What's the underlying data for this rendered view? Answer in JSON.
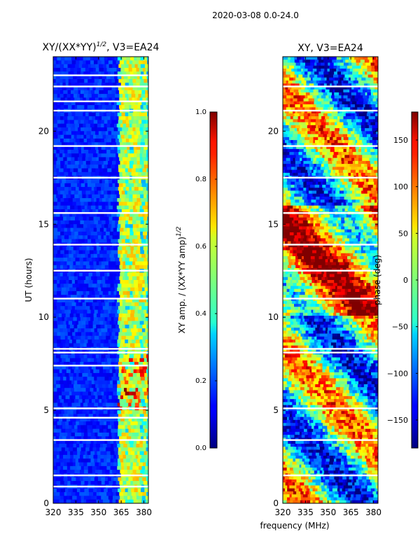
{
  "suptitle": "2020-03-08 0.0-24.0",
  "xlabel_shared": "frequency (MHz)",
  "chart_data": [
    {
      "type": "heatmap",
      "title_main": "XY/(XX*YY)",
      "title_exp": "1/2",
      "title_suffix": ", V3=EA24",
      "ylabel": "UT (hours)",
      "x_ticks": [
        320,
        335,
        350,
        365,
        380
      ],
      "xlim": [
        320,
        383
      ],
      "y_ticks": [
        0,
        5,
        10,
        15,
        20
      ],
      "ylim": [
        0,
        24
      ],
      "colorbar": {
        "label_main": "XY amp. / (XX*YY amp)",
        "label_exp": "1/2",
        "ticks": [
          "0.0",
          "0.2",
          "0.4",
          "0.6",
          "0.8",
          "1.0"
        ],
        "range": [
          0,
          1
        ],
        "colormap": "jet"
      },
      "bright_channels_mhz": [
        364,
        366,
        369,
        372,
        374,
        376,
        380
      ],
      "flagged_hours": [
        0.9,
        1.5,
        3.4,
        4.6,
        5.1,
        7.4,
        8.1,
        8.3,
        11.0,
        12.5,
        13.9,
        15.6,
        17.5,
        19.2,
        21.1,
        21.6,
        22.4,
        23.0
      ]
    },
    {
      "type": "heatmap",
      "title": "XY, V3=EA24",
      "x_ticks": [
        320,
        335,
        350,
        365,
        380
      ],
      "xlim": [
        320,
        383
      ],
      "y_ticks": [
        0,
        5,
        10,
        15,
        20
      ],
      "ylim": [
        0,
        24
      ],
      "colorbar": {
        "label": "phase (deg)",
        "ticks": [
          "−150",
          "−100",
          "−50",
          "0",
          "50",
          "100",
          "150"
        ],
        "tick_values": [
          -150,
          -100,
          -50,
          0,
          50,
          100,
          150
        ],
        "range": [
          -180,
          180
        ],
        "colormap": "jet"
      },
      "flagged_hours": [
        1.5,
        3.4,
        5.1,
        8.1,
        8.3,
        11.0,
        12.5,
        13.9,
        15.6,
        17.5,
        19.2,
        21.1,
        22.4
      ]
    }
  ]
}
